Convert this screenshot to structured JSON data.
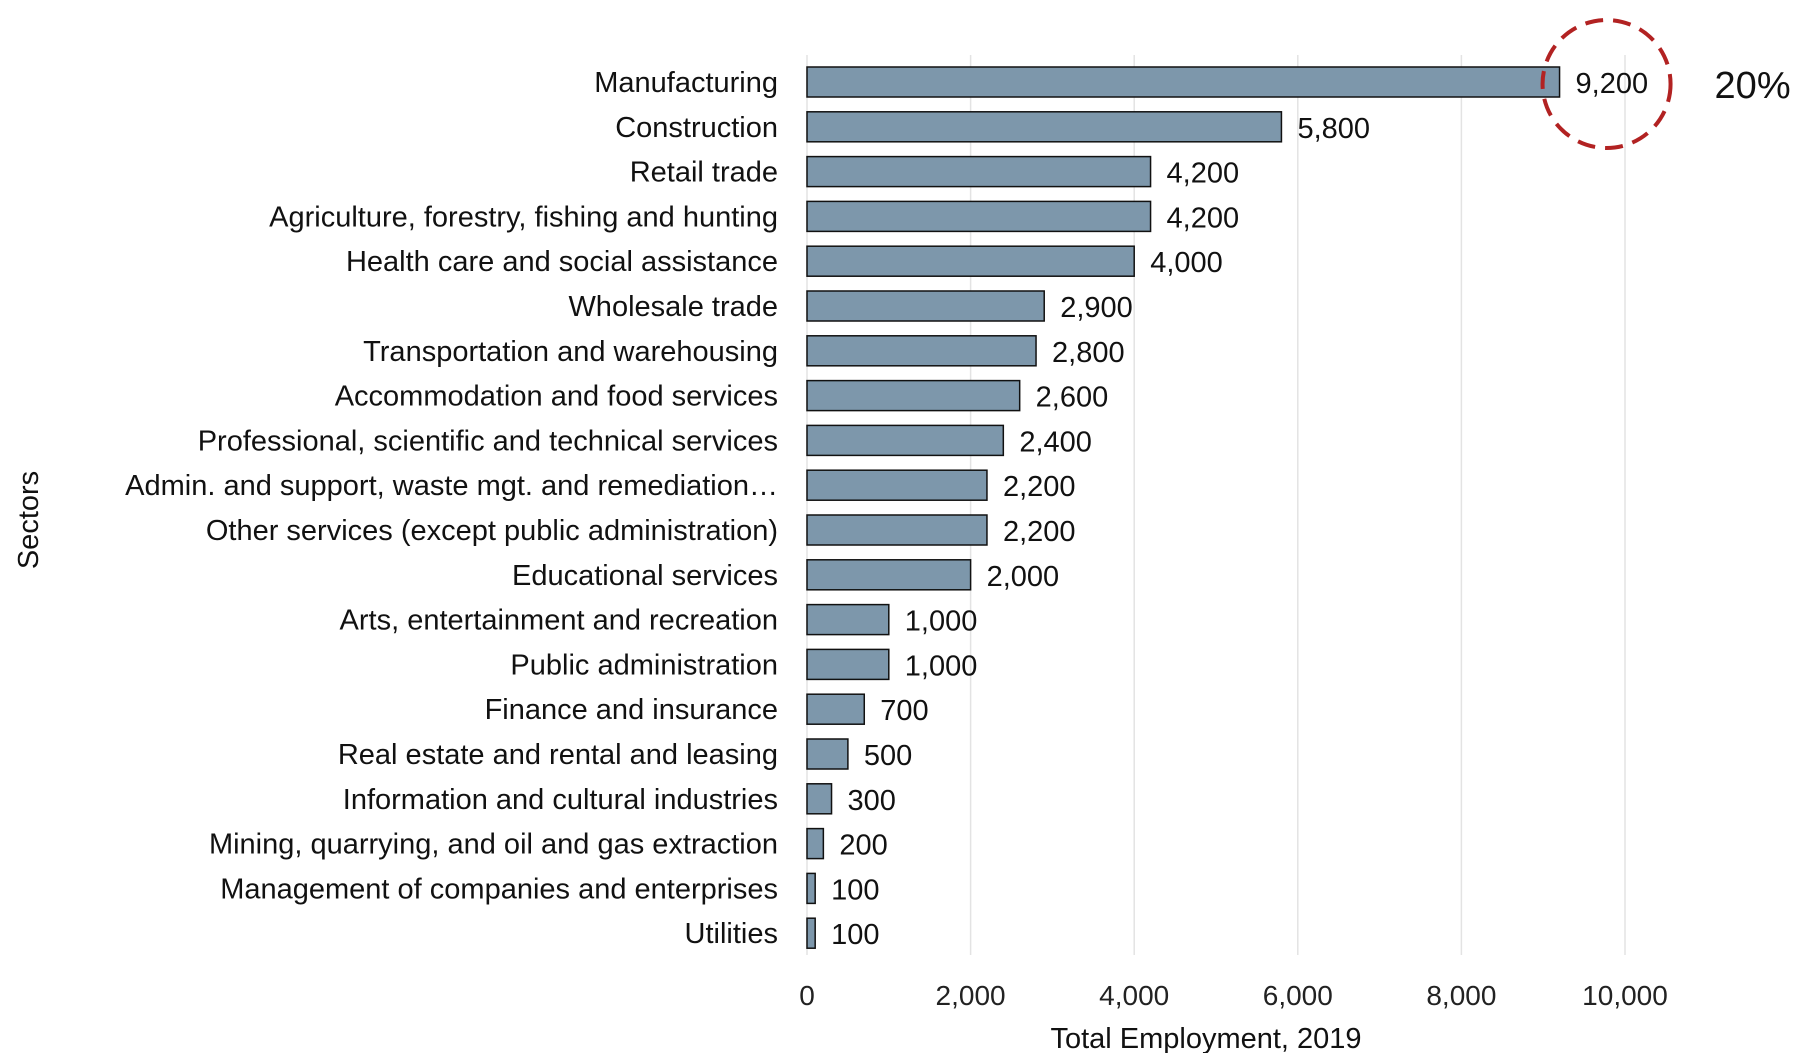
{
  "chart_data": {
    "type": "bar",
    "orientation": "horizontal",
    "xlabel": "Total Employment, 2019",
    "ylabel": "Sectors",
    "xlim": [
      0,
      10000
    ],
    "xticks": [
      0,
      2000,
      4000,
      6000,
      8000,
      10000
    ],
    "xtick_labels": [
      "0",
      "2,000",
      "4,000",
      "6,000",
      "8,000",
      "10,000"
    ],
    "grid": "vertical",
    "legend": "none",
    "bar_color": "#7d97ab",
    "bar_edge_color": "#111111",
    "categories": [
      "Manufacturing",
      "Construction",
      "Retail trade",
      "Agriculture, forestry, fishing and hunting",
      "Health care and social assistance",
      "Wholesale trade",
      "Transportation and warehousing",
      "Accommodation and food services",
      "Professional, scientific and technical services",
      "Admin. and support, waste mgt. and remediation…",
      "Other services (except public administration)",
      "Educational services",
      "Arts, entertainment and recreation",
      "Public administration",
      "Finance and insurance",
      "Real estate and rental and leasing",
      "Information and cultural industries",
      "Mining, quarrying, and oil and gas extraction",
      "Management of companies and enterprises",
      "Utilities"
    ],
    "values": [
      9200,
      5800,
      4200,
      4200,
      4000,
      2900,
      2800,
      2600,
      2400,
      2200,
      2200,
      2000,
      1000,
      1000,
      700,
      500,
      300,
      200,
      100,
      100
    ],
    "value_labels": [
      "9,200",
      "5,800",
      "4,200",
      "4,200",
      "4,000",
      "2,900",
      "2,800",
      "2,600",
      "2,400",
      "2,200",
      "2,200",
      "2,000",
      "1,000",
      "1,000",
      "700",
      "500",
      "300",
      "200",
      "100",
      "100"
    ],
    "annotations": [
      {
        "target_category": "Manufacturing",
        "shape": "dashed-circle",
        "color": "#b22222",
        "text": "20%"
      }
    ]
  }
}
